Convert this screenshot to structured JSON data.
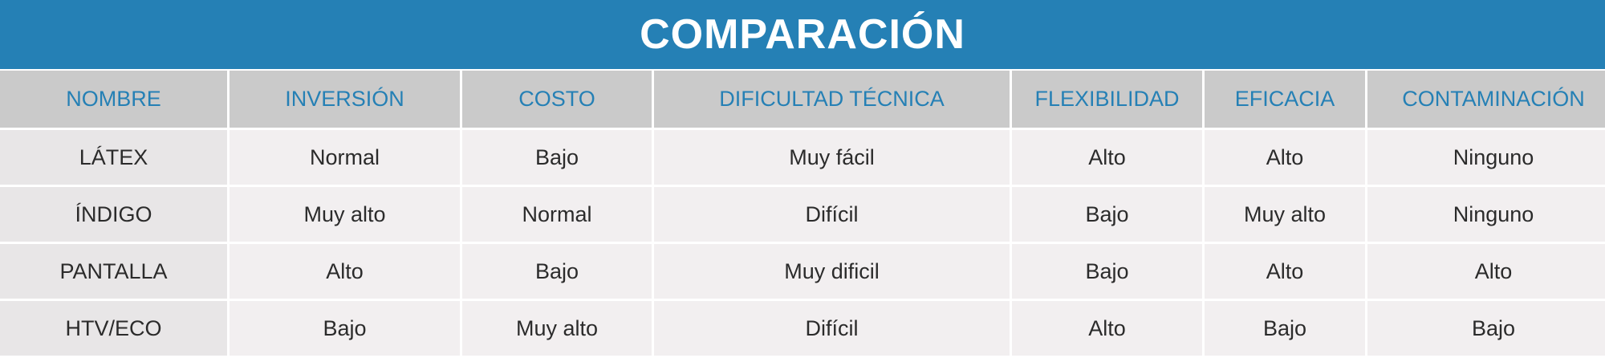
{
  "title": "COMPARACIÓN",
  "colors": {
    "accent": "#2580b5",
    "header_bg": "#cacaca",
    "cell_bg": "#f2eff0"
  },
  "columns": [
    "NOMBRE",
    "INVERSIÓN",
    "COSTO",
    "DIFICULTAD TÉCNICA",
    "FLEXIBILIDAD",
    "EFICACIA",
    "CONTAMINACIÓN"
  ],
  "rows": [
    [
      "LÁTEX",
      "Normal",
      "Bajo",
      "Muy fácil",
      "Alto",
      "Alto",
      "Ninguno"
    ],
    [
      "ÍNDIGO",
      "Muy alto",
      "Normal",
      "Difícil",
      "Bajo",
      "Muy alto",
      "Ninguno"
    ],
    [
      "PANTALLA",
      "Alto",
      "Bajo",
      "Muy dificil",
      "Bajo",
      "Alto",
      "Alto"
    ],
    [
      "HTV/ECO",
      "Bajo",
      "Muy alto",
      "Difícil",
      "Alto",
      "Bajo",
      "Bajo"
    ]
  ]
}
